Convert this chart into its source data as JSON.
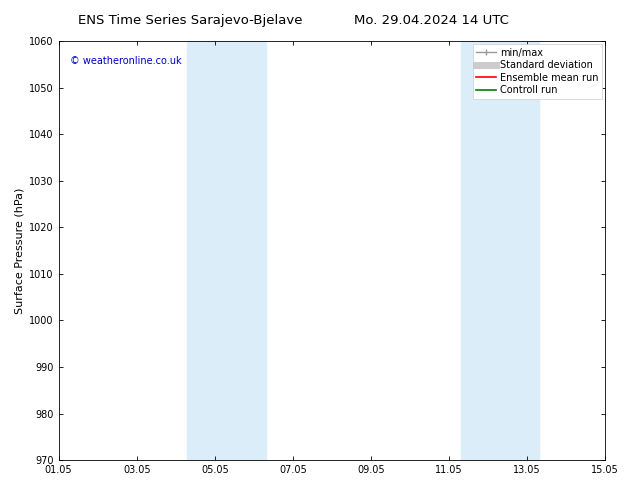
{
  "title": "ENS Time Series Sarajevo-Bjelave",
  "title2": "Mo. 29.04.2024 14 UTC",
  "ylabel": "Surface Pressure (hPa)",
  "ylim": [
    970,
    1060
  ],
  "yticks": [
    970,
    980,
    990,
    1000,
    1010,
    1020,
    1030,
    1040,
    1050,
    1060
  ],
  "xlim_days": [
    0,
    14
  ],
  "xtick_labels": [
    "01.05",
    "03.05",
    "05.05",
    "07.05",
    "09.05",
    "11.05",
    "13.05",
    "15.05"
  ],
  "xtick_positions": [
    0,
    2,
    4,
    6,
    8,
    10,
    12,
    14
  ],
  "shaded_bands": [
    {
      "xmin": 3.3,
      "xmax": 5.3
    },
    {
      "xmin": 10.3,
      "xmax": 12.3
    }
  ],
  "shade_color": "#dbedf8",
  "background_color": "#ffffff",
  "copyright_text": "© weatheronline.co.uk",
  "copyright_color": "#0000cc",
  "legend_items": [
    {
      "label": "min/max",
      "color": "#aaaaaa",
      "lw": 1.2
    },
    {
      "label": "Standard deviation",
      "color": "#cccccc",
      "lw": 5
    },
    {
      "label": "Ensemble mean run",
      "color": "#ff0000",
      "lw": 1.2
    },
    {
      "label": "Controll run",
      "color": "#008000",
      "lw": 1.2
    }
  ],
  "title_fontsize": 9.5,
  "ylabel_fontsize": 8,
  "tick_fontsize": 7,
  "legend_fontsize": 7,
  "copyright_fontsize": 7
}
